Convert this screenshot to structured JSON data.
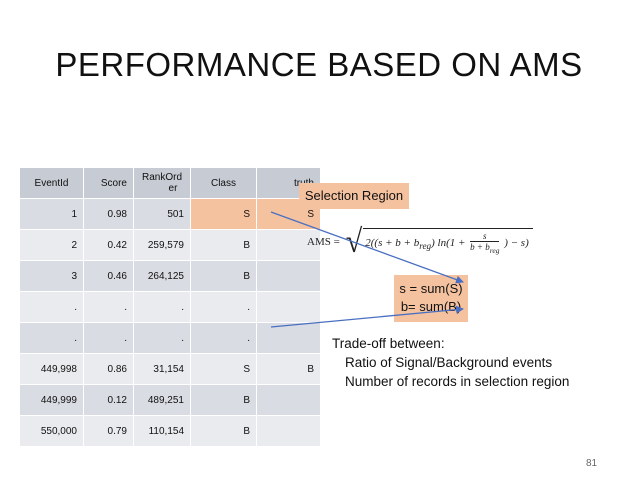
{
  "slide": {
    "title": "PERFORMANCE BASED ON AMS",
    "page_number": "81"
  },
  "table": {
    "headers": {
      "eventid": "EventId",
      "score": "Score",
      "rankorder": "RankOrd\ner",
      "class": "Class",
      "truth": "truth"
    },
    "rows": [
      {
        "eventid": "1",
        "score": "0.98",
        "rankorder": "501",
        "class": "S",
        "truth": "S"
      },
      {
        "eventid": "2",
        "score": "0.42",
        "rankorder": "259,579",
        "class": "B",
        "truth": ""
      },
      {
        "eventid": "3",
        "score": "0.46",
        "rankorder": "264,125",
        "class": "B",
        "truth": ""
      },
      {
        "eventid": ".",
        "score": ".",
        "rankorder": ".",
        "class": ".",
        "truth": ""
      },
      {
        "eventid": ".",
        "score": ".",
        "rankorder": ".",
        "class": ".",
        "truth": ""
      },
      {
        "eventid": "449,998",
        "score": "0.86",
        "rankorder": "31,154",
        "class": "S",
        "truth": "B"
      },
      {
        "eventid": "449,999",
        "score": "0.12",
        "rankorder": "489,251",
        "class": "B",
        "truth": ""
      },
      {
        "eventid": "550,000",
        "score": "0.79",
        "rankorder": "110,154",
        "class": "B",
        "truth": ""
      }
    ]
  },
  "selection_region": {
    "label": "Selection Region"
  },
  "formula": {
    "lhs": "AMS =",
    "body_start": "2((s + b + b",
    "breg": "reg",
    "body_mid": ") ln(1 +",
    "frac_num": "s",
    "frac_den": "b + b",
    "body_end": ") − s)"
  },
  "sums": {
    "line1": "s = sum(S)",
    "line2": "b= sum(B)"
  },
  "tradeoff": {
    "heading": "Trade-off between:",
    "items": [
      "Ratio of Signal/Background events",
      "Number of records in selection region"
    ]
  },
  "colors": {
    "highlight": "#f5c2a0",
    "arrow": "#4a6fc1",
    "header_bg": "#c7cbd3"
  }
}
